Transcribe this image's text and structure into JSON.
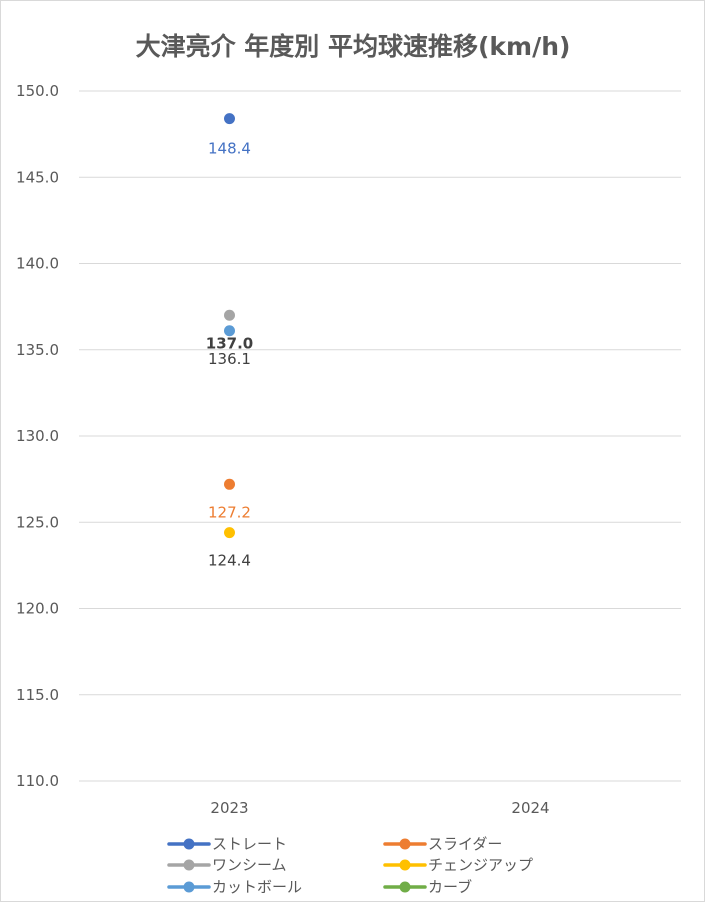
{
  "chart_data": {
    "type": "line",
    "title": "大津亮介 年度別 平均球速推移(km/h)",
    "categories": [
      "2023",
      "2024"
    ],
    "ylim": [
      110,
      150
    ],
    "ytick_step": 5,
    "ytick_labels": [
      "110.0",
      "115.0",
      "120.0",
      "125.0",
      "130.0",
      "135.0",
      "140.0",
      "145.0",
      "150.0"
    ],
    "grid": true,
    "legend_position": "bottom",
    "series": [
      {
        "name": "ストレート",
        "values": [
          148.4,
          null
        ],
        "color": "#4472c4",
        "labels": [
          "148.4",
          ""
        ],
        "label_color": "#4472c4"
      },
      {
        "name": "スライダー",
        "values": [
          127.2,
          null
        ],
        "color": "#ed7d31",
        "labels": [
          "127.2",
          ""
        ],
        "label_color": "#ed7d31"
      },
      {
        "name": "ワンシーム",
        "values": [
          137.0,
          null
        ],
        "color": "#a5a5a5",
        "labels": [
          "137.0",
          ""
        ],
        "label_color": "#404040"
      },
      {
        "name": "チェンジアップ",
        "values": [
          124.4,
          null
        ],
        "color": "#ffc000",
        "labels": [
          "124.4",
          ""
        ],
        "label_color": "#404040"
      },
      {
        "name": "カットボール",
        "values": [
          136.1,
          null
        ],
        "color": "#5b9bd5",
        "labels": [
          "136.1",
          ""
        ],
        "label_color": "#404040"
      },
      {
        "name": "カーブ",
        "values": [
          null,
          null
        ],
        "color": "#70ad47",
        "labels": [
          "",
          ""
        ],
        "label_color": "#404040"
      }
    ]
  }
}
